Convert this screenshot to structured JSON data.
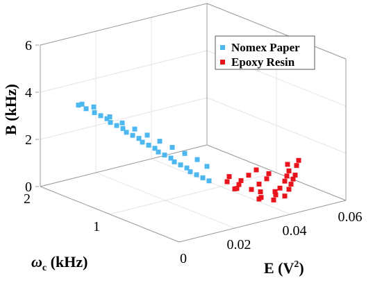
{
  "chart_data": {
    "type": "scatter",
    "projection": "3d",
    "grid": true,
    "box": true,
    "legend_position": "top-right",
    "axes": {
      "x": {
        "label": "E (V²)",
        "label_base": "E (V",
        "label_sup": "2",
        "label_tail": ")",
        "range": [
          0,
          0.06
        ],
        "ticks": [
          0,
          0.02,
          0.04,
          0.06
        ],
        "tick_labels": [
          "0",
          "0.02",
          "0.04",
          "0.06"
        ]
      },
      "y": {
        "label": "ωc (kHz)",
        "label_base": "ω",
        "label_sub": "c",
        "label_tail": " (kHz)",
        "range": [
          0,
          2
        ],
        "ticks": [
          1,
          2
        ],
        "tick_labels": [
          "1",
          "2"
        ]
      },
      "z": {
        "label": "B (kHz)",
        "range": [
          0,
          6
        ],
        "ticks": [
          0,
          2,
          4,
          6
        ],
        "tick_labels": [
          "0",
          "2",
          "4",
          "6"
        ]
      }
    },
    "series": [
      {
        "name": "Nomex Paper",
        "color": "#4db8f0",
        "marker": "square",
        "points": [
          [
            0.0,
            1.4,
            4.2
          ],
          [
            0.0,
            1.45,
            4.1
          ],
          [
            0.001,
            1.38,
            4.0
          ],
          [
            0.002,
            1.3,
            3.9
          ],
          [
            0.003,
            1.25,
            3.8
          ],
          [
            0.004,
            1.2,
            3.7
          ],
          [
            0.004,
            1.15,
            3.6
          ],
          [
            0.005,
            1.1,
            3.5
          ],
          [
            0.006,
            1.05,
            3.4
          ],
          [
            0.006,
            1.0,
            3.3
          ],
          [
            0.007,
            0.95,
            3.2
          ],
          [
            0.008,
            0.9,
            3.1
          ],
          [
            0.008,
            0.85,
            3.0
          ],
          [
            0.009,
            0.8,
            2.9
          ],
          [
            0.01,
            0.75,
            2.8
          ],
          [
            0.01,
            0.7,
            2.7
          ],
          [
            0.011,
            0.65,
            2.6
          ],
          [
            0.012,
            0.6,
            2.5
          ],
          [
            0.012,
            0.55,
            2.4
          ],
          [
            0.013,
            0.5,
            2.3
          ],
          [
            0.014,
            0.45,
            2.2
          ],
          [
            0.014,
            0.4,
            2.1
          ],
          [
            0.015,
            0.35,
            2.0
          ],
          [
            0.016,
            0.3,
            1.9
          ],
          [
            0.017,
            0.25,
            1.8
          ],
          [
            0.003,
            1.35,
            4.05
          ],
          [
            0.005,
            1.2,
            3.75
          ],
          [
            0.007,
            1.1,
            3.55
          ],
          [
            0.009,
            1.0,
            3.35
          ],
          [
            0.011,
            0.9,
            3.15
          ],
          [
            0.013,
            0.8,
            2.95
          ],
          [
            0.015,
            0.7,
            2.75
          ],
          [
            0.017,
            0.6,
            2.55
          ],
          [
            0.019,
            0.5,
            2.35
          ],
          [
            0.02,
            0.4,
            2.15
          ]
        ]
      },
      {
        "name": "Epoxy Resin",
        "color": "#e8141b",
        "marker": "square",
        "points": [
          [
            0.03,
            0.4,
            0.9
          ],
          [
            0.032,
            0.45,
            0.8
          ],
          [
            0.034,
            0.5,
            0.85
          ],
          [
            0.036,
            0.4,
            0.7
          ],
          [
            0.038,
            0.35,
            0.6
          ],
          [
            0.04,
            0.45,
            0.75
          ],
          [
            0.042,
            0.3,
            0.55
          ],
          [
            0.044,
            0.5,
            0.8
          ],
          [
            0.046,
            0.55,
            0.9
          ],
          [
            0.048,
            0.4,
            0.7
          ],
          [
            0.05,
            0.45,
            0.8
          ],
          [
            0.052,
            0.5,
            0.9
          ],
          [
            0.054,
            0.6,
            1.0
          ],
          [
            0.056,
            0.55,
            0.95
          ],
          [
            0.035,
            0.25,
            0.5
          ],
          [
            0.037,
            0.3,
            0.45
          ],
          [
            0.039,
            0.2,
            0.4
          ],
          [
            0.041,
            0.25,
            0.5
          ],
          [
            0.043,
            0.2,
            0.45
          ],
          [
            0.045,
            0.35,
            0.55
          ],
          [
            0.047,
            0.3,
            0.5
          ],
          [
            0.049,
            0.35,
            0.6
          ],
          [
            0.051,
            0.4,
            0.7
          ],
          [
            0.053,
            0.45,
            0.75
          ],
          [
            0.033,
            0.6,
            1.1
          ],
          [
            0.031,
            0.55,
            1.0
          ],
          [
            0.058,
            0.6,
            1.05
          ],
          [
            0.044,
            0.65,
            1.0
          ],
          [
            0.04,
            0.6,
            0.95
          ],
          [
            0.036,
            0.55,
            0.9
          ]
        ]
      }
    ]
  }
}
